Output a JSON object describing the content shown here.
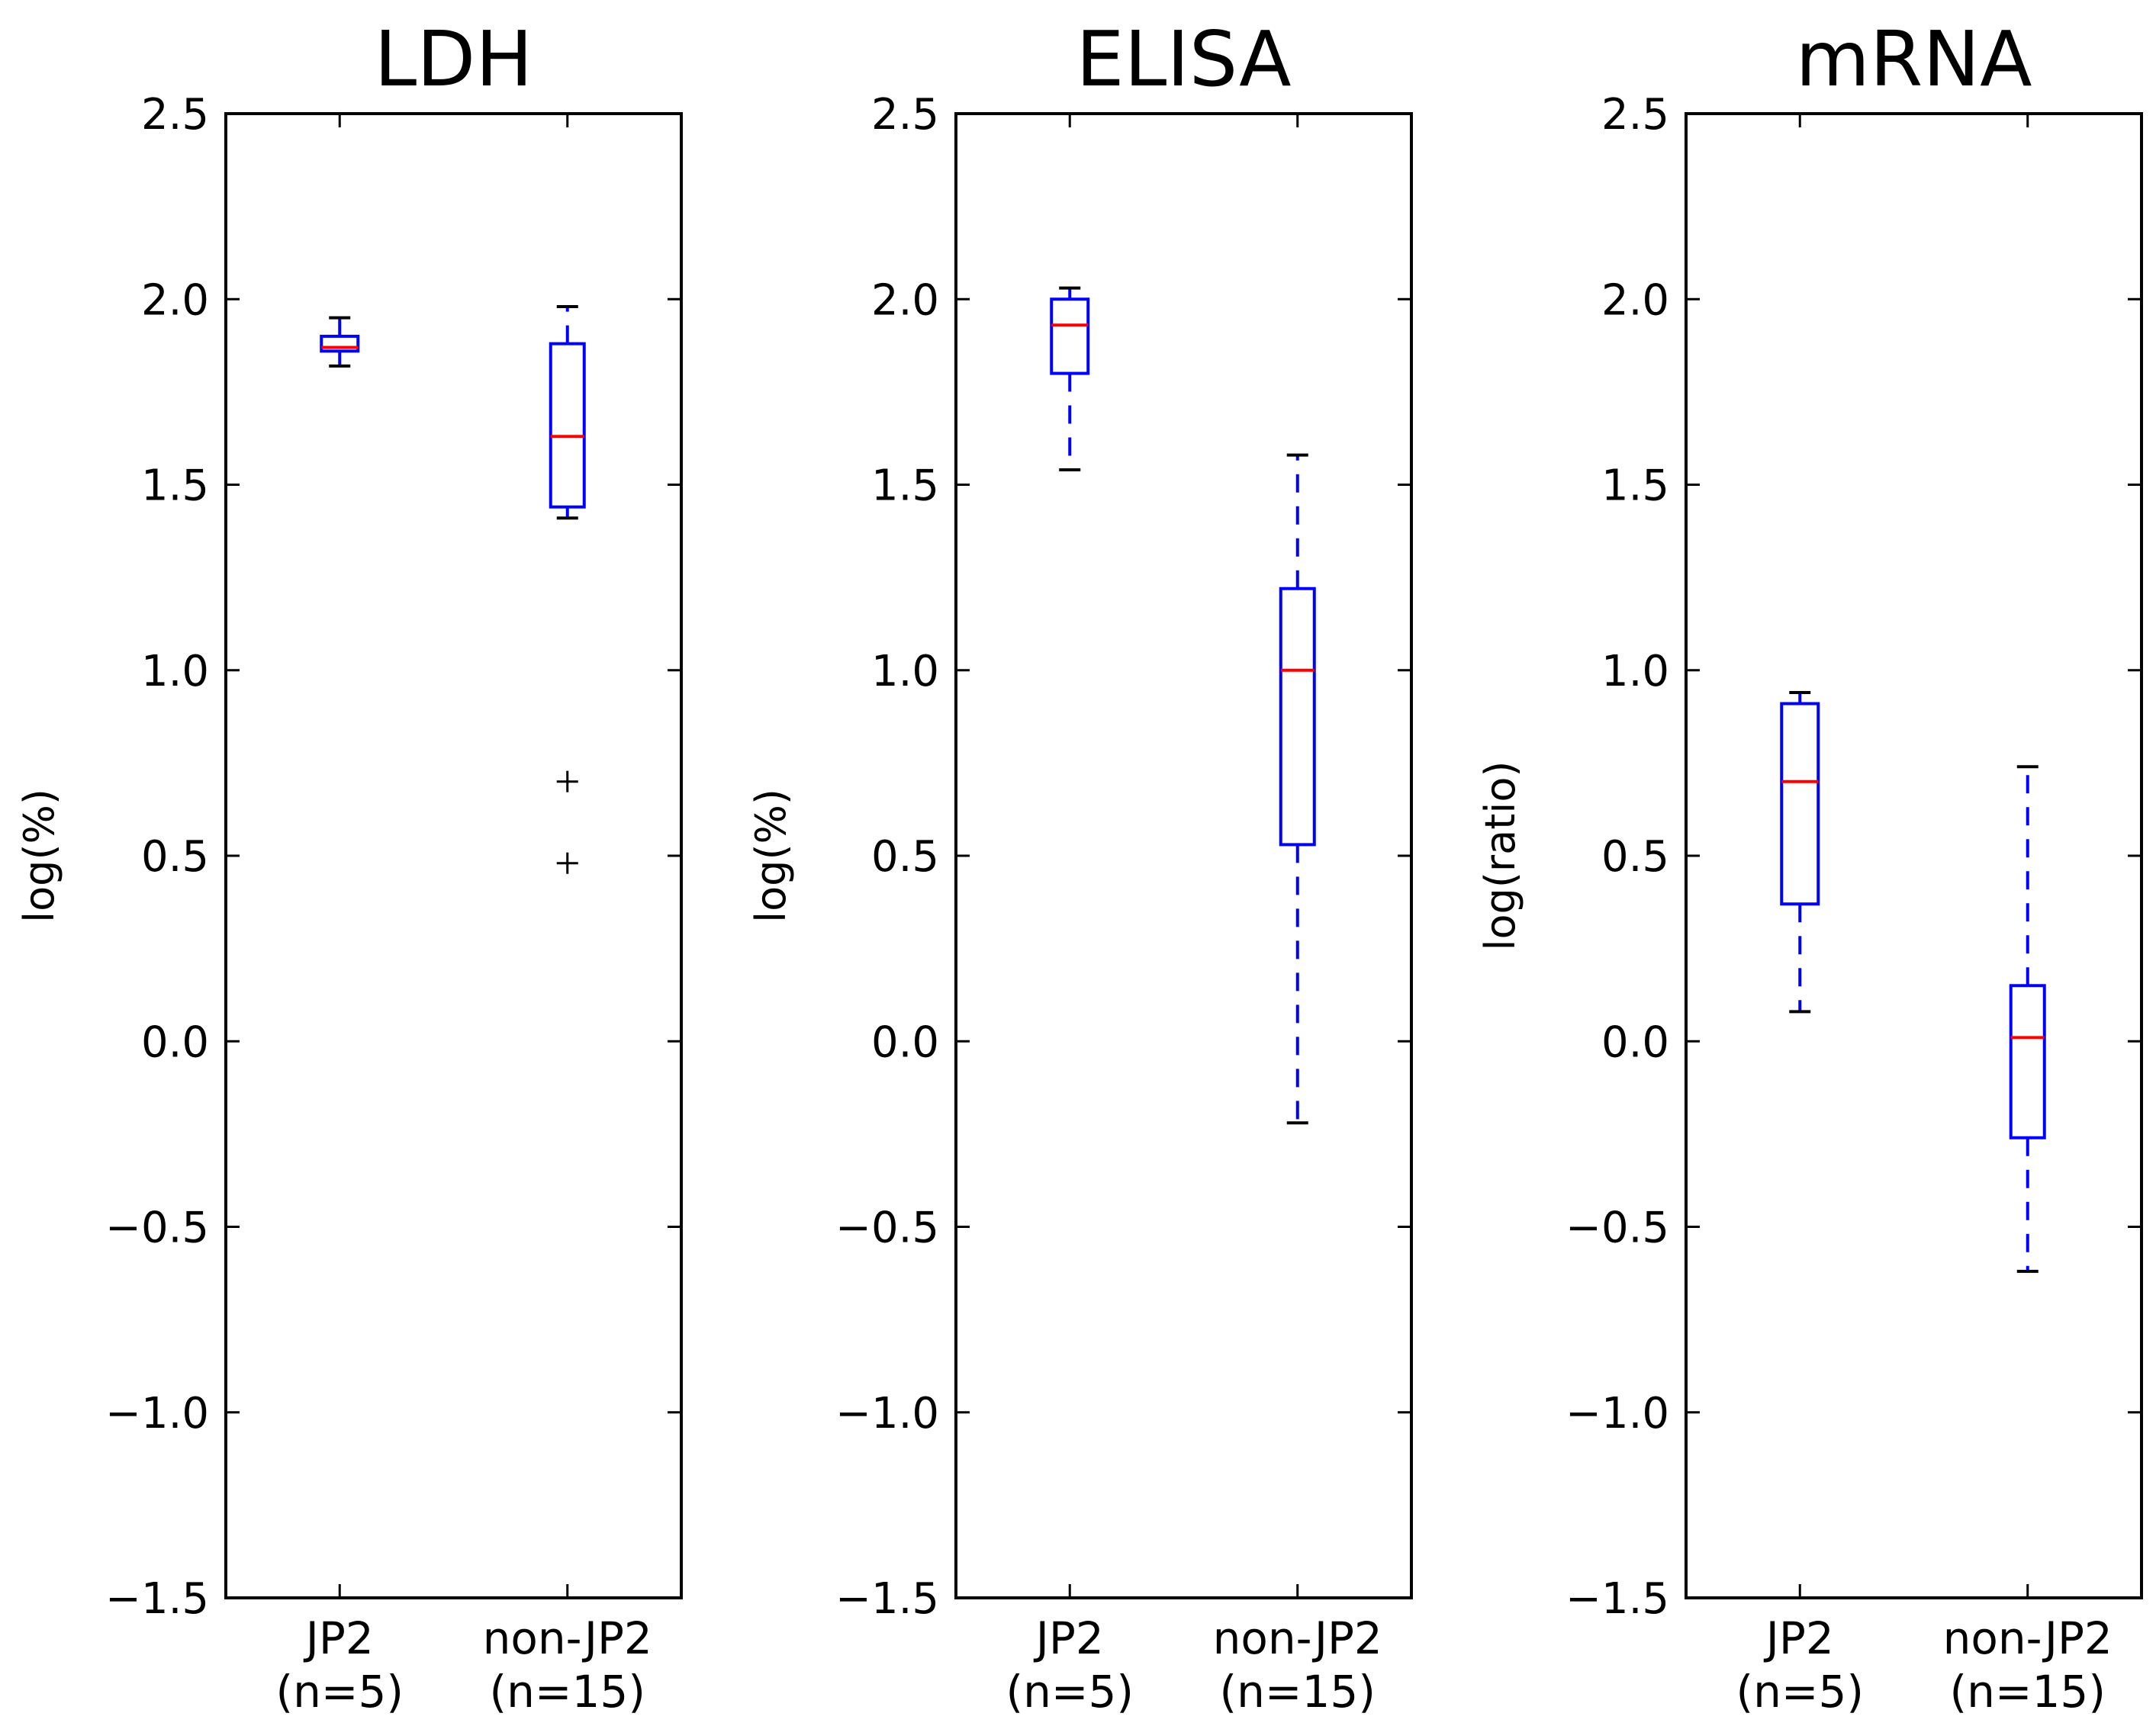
{
  "colors": {
    "box": "#0000ff",
    "median": "#ff0000",
    "whisker": "#0000ff",
    "cap": "#000000",
    "flier": "#000000",
    "axes": "#000000"
  },
  "chart_data": [
    {
      "type": "box",
      "title": "LDH",
      "ylabel": "log(%)",
      "xlabel": "",
      "ylim": [
        -1.5,
        2.5
      ],
      "yticks": [
        "2.5",
        "2.0",
        "1.5",
        "1.0",
        "0.5",
        "0.0",
        "−0.5",
        "−1.0",
        "−1.5"
      ],
      "ytick_values": [
        2.5,
        2.0,
        1.5,
        1.0,
        0.5,
        0.0,
        -0.5,
        -1.0,
        -1.5
      ],
      "categories": [
        {
          "label": "JP2",
          "n": "(n=5)"
        },
        {
          "label": "non-JP2",
          "n": "(n=15)"
        }
      ],
      "boxes": [
        {
          "whislo": 1.82,
          "q1": 1.86,
          "med": 1.87,
          "q3": 1.9,
          "whishi": 1.95,
          "fliers": []
        },
        {
          "whislo": 1.41,
          "q1": 1.44,
          "med": 1.63,
          "q3": 1.88,
          "whishi": 1.98,
          "fliers": [
            0.7,
            0.48
          ]
        }
      ]
    },
    {
      "type": "box",
      "title": "ELISA",
      "ylabel": "log(%)",
      "xlabel": "",
      "ylim": [
        -1.5,
        2.5
      ],
      "yticks": [
        "2.5",
        "2.0",
        "1.5",
        "1.0",
        "0.5",
        "0.0",
        "−0.5",
        "−1.0",
        "−1.5"
      ],
      "ytick_values": [
        2.5,
        2.0,
        1.5,
        1.0,
        0.5,
        0.0,
        -0.5,
        -1.0,
        -1.5
      ],
      "categories": [
        {
          "label": "JP2",
          "n": "(n=5)"
        },
        {
          "label": "non-JP2",
          "n": "(n=15)"
        }
      ],
      "boxes": [
        {
          "whislo": 1.54,
          "q1": 1.8,
          "med": 1.93,
          "q3": 2.0,
          "whishi": 2.03,
          "fliers": []
        },
        {
          "whislo": -0.22,
          "q1": 0.53,
          "med": 1.0,
          "q3": 1.22,
          "whishi": 1.58,
          "fliers": []
        }
      ]
    },
    {
      "type": "box",
      "title": "mRNA",
      "ylabel": "log(ratio)",
      "xlabel": "",
      "ylim": [
        -1.5,
        2.5
      ],
      "yticks": [
        "2.5",
        "2.0",
        "1.5",
        "1.0",
        "0.5",
        "0.0",
        "−0.5",
        "−1.0",
        "−1.5"
      ],
      "ytick_values": [
        2.5,
        2.0,
        1.5,
        1.0,
        0.5,
        0.0,
        -0.5,
        -1.0,
        -1.5
      ],
      "categories": [
        {
          "label": "JP2",
          "n": "(n=5)"
        },
        {
          "label": "non-JP2",
          "n": "(n=15)"
        }
      ],
      "boxes": [
        {
          "whislo": 0.08,
          "q1": 0.37,
          "med": 0.7,
          "q3": 0.91,
          "whishi": 0.94,
          "fliers": []
        },
        {
          "whislo": -0.62,
          "q1": -0.26,
          "med": 0.01,
          "q3": 0.15,
          "whishi": 0.74,
          "fliers": []
        }
      ]
    }
  ]
}
